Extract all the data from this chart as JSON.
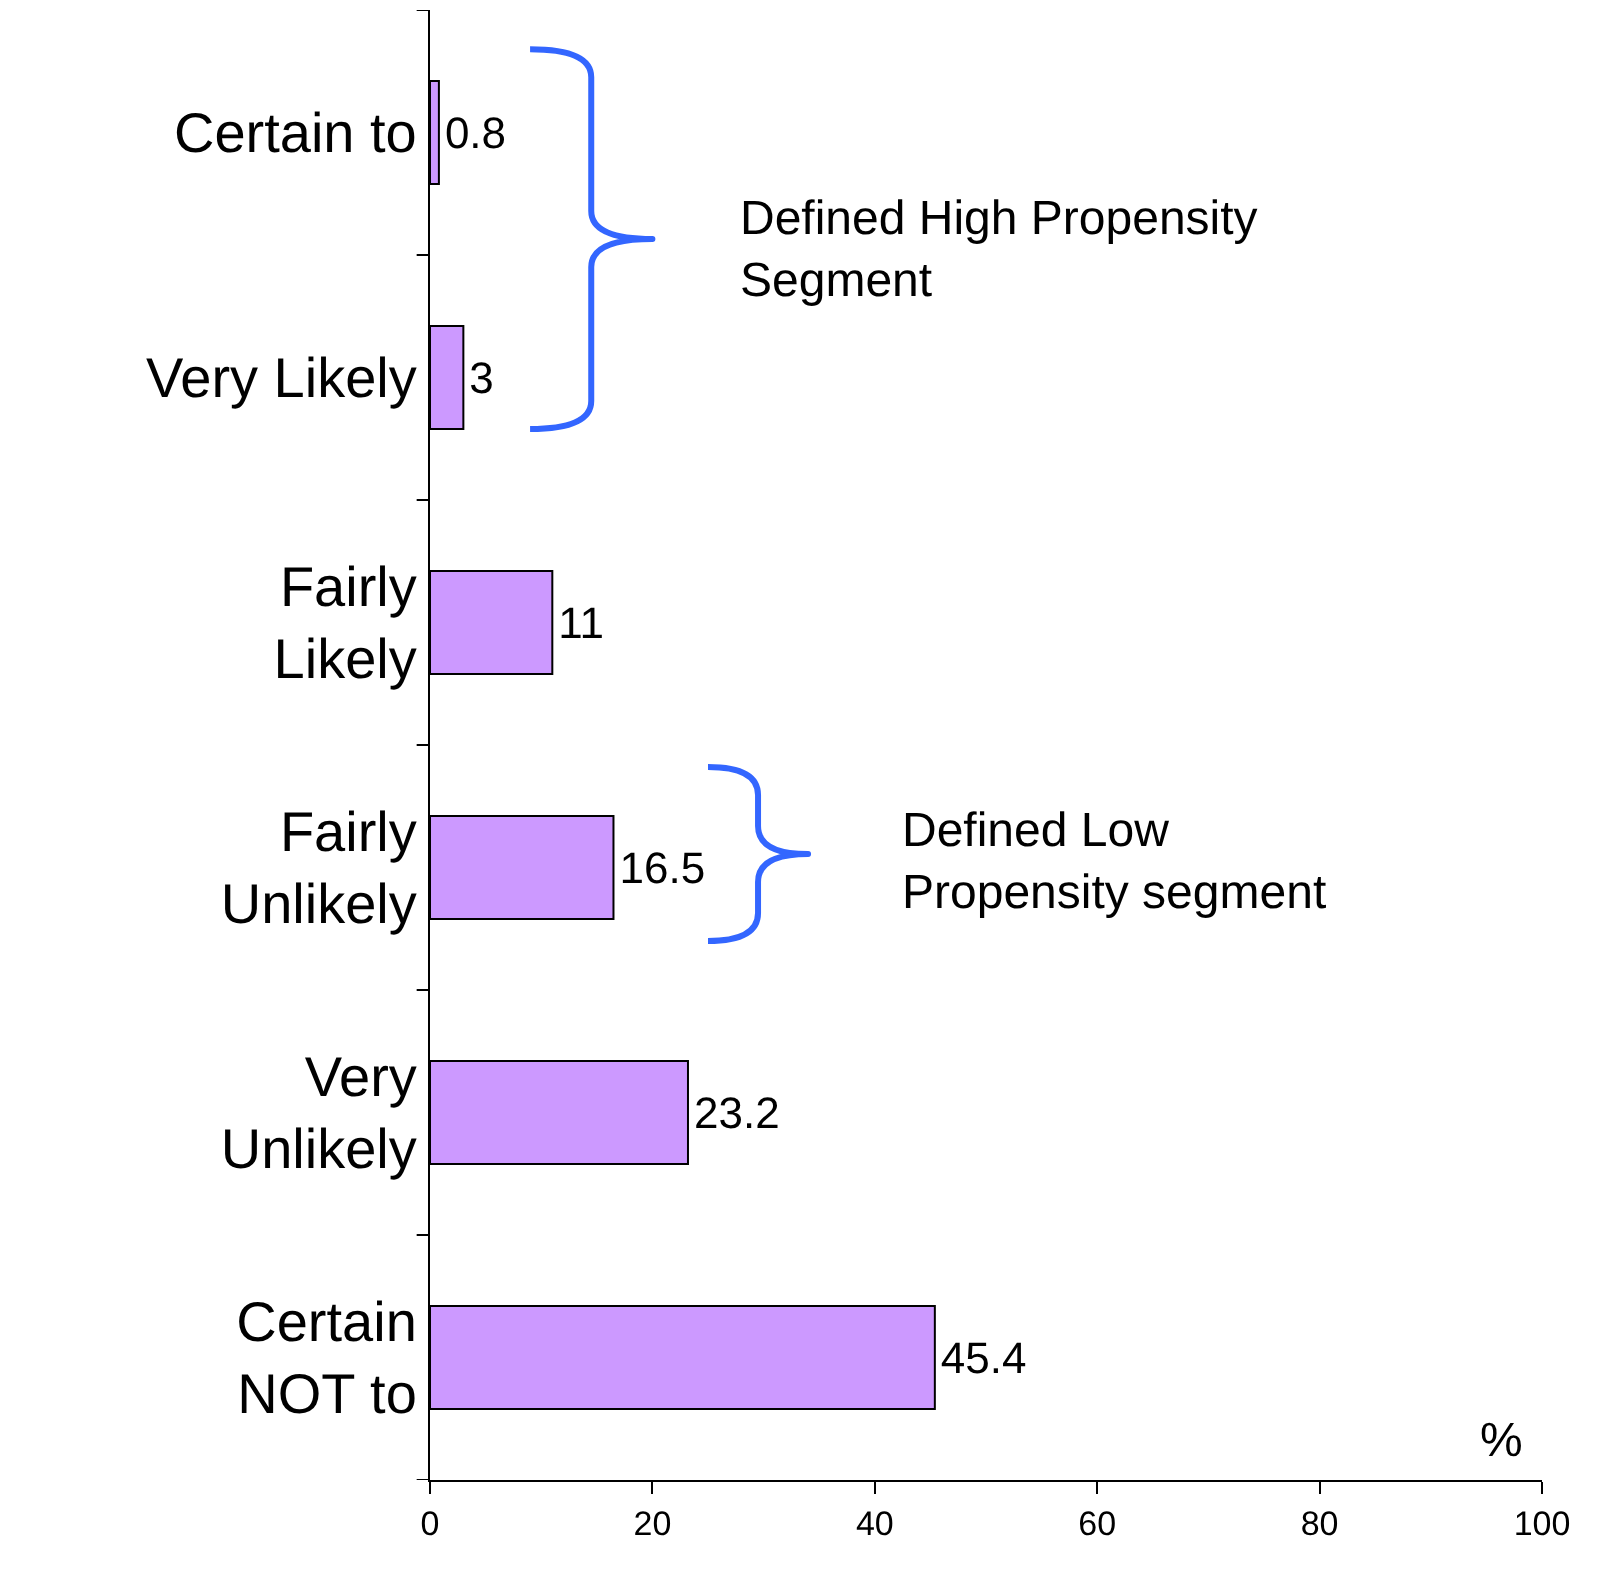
{
  "chart_data": {
    "type": "bar",
    "orientation": "horizontal",
    "categories": [
      "Certain to",
      "Very Likely",
      "Fairly Likely",
      "Fairly Unlikely",
      "Very Unlikely",
      "Certain NOT to"
    ],
    "values": [
      0.8,
      3,
      11,
      16.5,
      23.2,
      45.4
    ],
    "color": "#cc99ff",
    "xlim": [
      0,
      100
    ],
    "xticks": [
      0,
      20,
      40,
      60,
      80,
      100
    ],
    "xlabel": "%",
    "data_labels": true,
    "grid": false,
    "annotations": [
      "Defined High Propensity Segment",
      "Defined Low Propensity segment"
    ]
  }
}
